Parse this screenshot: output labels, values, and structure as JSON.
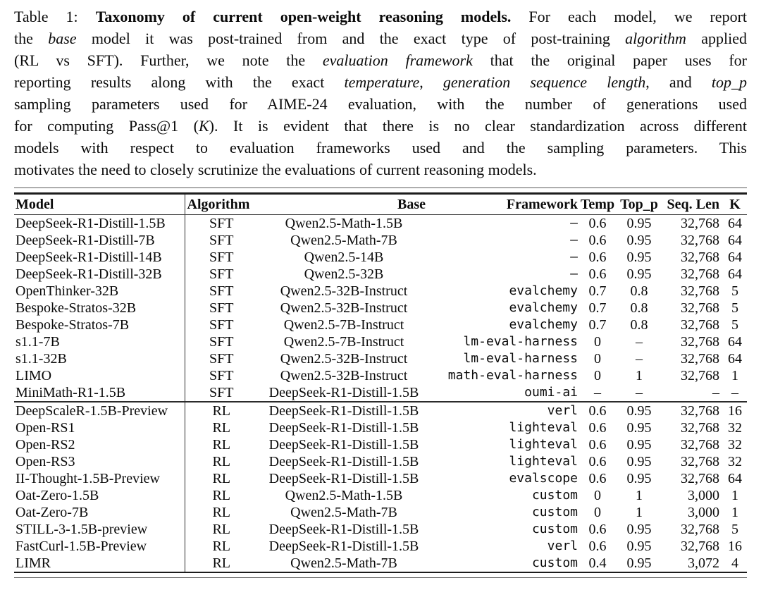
{
  "caption": {
    "lines": [
      [
        {
          "t": "Table 1: ",
          "s": "n"
        },
        {
          "t": "Taxonomy of current open-weight reasoning models.",
          "s": "b"
        },
        {
          "t": " For each model, we report",
          "s": "n"
        }
      ],
      [
        {
          "t": "the ",
          "s": "n"
        },
        {
          "t": "base",
          "s": "i"
        },
        {
          "t": " model it was post-trained from and the exact type of post-training ",
          "s": "n"
        },
        {
          "t": "algorithm",
          "s": "i"
        },
        {
          "t": " applied",
          "s": "n"
        }
      ],
      [
        {
          "t": "(RL vs SFT). Further, we note the ",
          "s": "n"
        },
        {
          "t": "evaluation framework",
          "s": "i"
        },
        {
          "t": " that the original paper uses for",
          "s": "n"
        }
      ],
      [
        {
          "t": "reporting results along with the exact ",
          "s": "n"
        },
        {
          "t": "temperature",
          "s": "i"
        },
        {
          "t": ", ",
          "s": "n"
        },
        {
          "t": "generation sequence length",
          "s": "i"
        },
        {
          "t": ", and ",
          "s": "n"
        },
        {
          "t": "top_p",
          "s": "i"
        }
      ],
      [
        {
          "t": "sampling parameters used for AIME-24 evaluation, with the number of generations used",
          "s": "n"
        }
      ],
      [
        {
          "t": "for computing Pass@1 (",
          "s": "n"
        },
        {
          "t": "K",
          "s": "i"
        },
        {
          "t": "). It is evident that there is no clear standardization across different",
          "s": "n"
        }
      ],
      [
        {
          "t": "models with respect to evaluation frameworks used and the sampling parameters. This",
          "s": "n"
        }
      ],
      [
        {
          "t": "motivates the need to closely scrutinize the evaluations of current reasoning models.",
          "s": "n"
        }
      ]
    ]
  },
  "table": {
    "headers": [
      "Model",
      "Algorithm",
      "Base",
      "Framework",
      "Temp",
      "Top_p",
      "Seq. Len",
      "K"
    ],
    "sections": [
      {
        "rows": [
          [
            "DeepSeek-R1-Distill-1.5B",
            "SFT",
            "Qwen2.5-Math-1.5B",
            "–",
            "0.6",
            "0.95",
            "32,768",
            "64"
          ],
          [
            "DeepSeek-R1-Distill-7B",
            "SFT",
            "Qwen2.5-Math-7B",
            "–",
            "0.6",
            "0.95",
            "32,768",
            "64"
          ],
          [
            "DeepSeek-R1-Distill-14B",
            "SFT",
            "Qwen2.5-14B",
            "–",
            "0.6",
            "0.95",
            "32,768",
            "64"
          ],
          [
            "DeepSeek-R1-Distill-32B",
            "SFT",
            "Qwen2.5-32B",
            "–",
            "0.6",
            "0.95",
            "32,768",
            "64"
          ],
          [
            "OpenThinker-32B",
            "SFT",
            "Qwen2.5-32B-Instruct",
            "evalchemy",
            "0.7",
            "0.8",
            "32,768",
            "5"
          ],
          [
            "Bespoke-Stratos-32B",
            "SFT",
            "Qwen2.5-32B-Instruct",
            "evalchemy",
            "0.7",
            "0.8",
            "32,768",
            "5"
          ],
          [
            "Bespoke-Stratos-7B",
            "SFT",
            "Qwen2.5-7B-Instruct",
            "evalchemy",
            "0.7",
            "0.8",
            "32,768",
            "5"
          ],
          [
            "s1.1-7B",
            "SFT",
            "Qwen2.5-7B-Instruct",
            "lm-eval-harness",
            "0",
            "–",
            "32,768",
            "64"
          ],
          [
            "s1.1-32B",
            "SFT",
            "Qwen2.5-32B-Instruct",
            "lm-eval-harness",
            "0",
            "–",
            "32,768",
            "64"
          ],
          [
            "LIMO",
            "SFT",
            "Qwen2.5-32B-Instruct",
            "math-eval-harness",
            "0",
            "1",
            "32,768",
            "1"
          ],
          [
            "MiniMath-R1-1.5B",
            "SFT",
            "DeepSeek-R1-Distill-1.5B",
            "oumi-ai",
            "–",
            "–",
            "–",
            "–"
          ]
        ]
      },
      {
        "rows": [
          [
            "DeepScaleR-1.5B-Preview",
            "RL",
            "DeepSeek-R1-Distill-1.5B",
            "verl",
            "0.6",
            "0.95",
            "32,768",
            "16"
          ],
          [
            "Open-RS1",
            "RL",
            "DeepSeek-R1-Distill-1.5B",
            "lighteval",
            "0.6",
            "0.95",
            "32,768",
            "32"
          ],
          [
            "Open-RS2",
            "RL",
            "DeepSeek-R1-Distill-1.5B",
            "lighteval",
            "0.6",
            "0.95",
            "32,768",
            "32"
          ],
          [
            "Open-RS3",
            "RL",
            "DeepSeek-R1-Distill-1.5B",
            "lighteval",
            "0.6",
            "0.95",
            "32,768",
            "32"
          ],
          [
            "II-Thought-1.5B-Preview",
            "RL",
            "DeepSeek-R1-Distill-1.5B",
            "evalscope",
            "0.6",
            "0.95",
            "32,768",
            "64"
          ],
          [
            "Oat-Zero-1.5B",
            "RL",
            "Qwen2.5-Math-1.5B",
            "custom",
            "0",
            "1",
            "3,000",
            "1"
          ],
          [
            "Oat-Zero-7B",
            "RL",
            "Qwen2.5-Math-7B",
            "custom",
            "0",
            "1",
            "3,000",
            "1"
          ],
          [
            "STILL-3-1.5B-preview",
            "RL",
            "DeepSeek-R1-Distill-1.5B",
            "custom",
            "0.6",
            "0.95",
            "32,768",
            "5"
          ],
          [
            "FastCurl-1.5B-Preview",
            "RL",
            "DeepSeek-R1-Distill-1.5B",
            "verl",
            "0.6",
            "0.95",
            "32,768",
            "16"
          ],
          [
            "LIMR",
            "RL",
            "Qwen2.5-Math-7B",
            "custom",
            "0.4",
            "0.95",
            "3,072",
            "4"
          ]
        ]
      }
    ]
  },
  "colors": {
    "background": "#ffffff",
    "text": "#0b0b0b",
    "rule": "#1c1c1c"
  }
}
